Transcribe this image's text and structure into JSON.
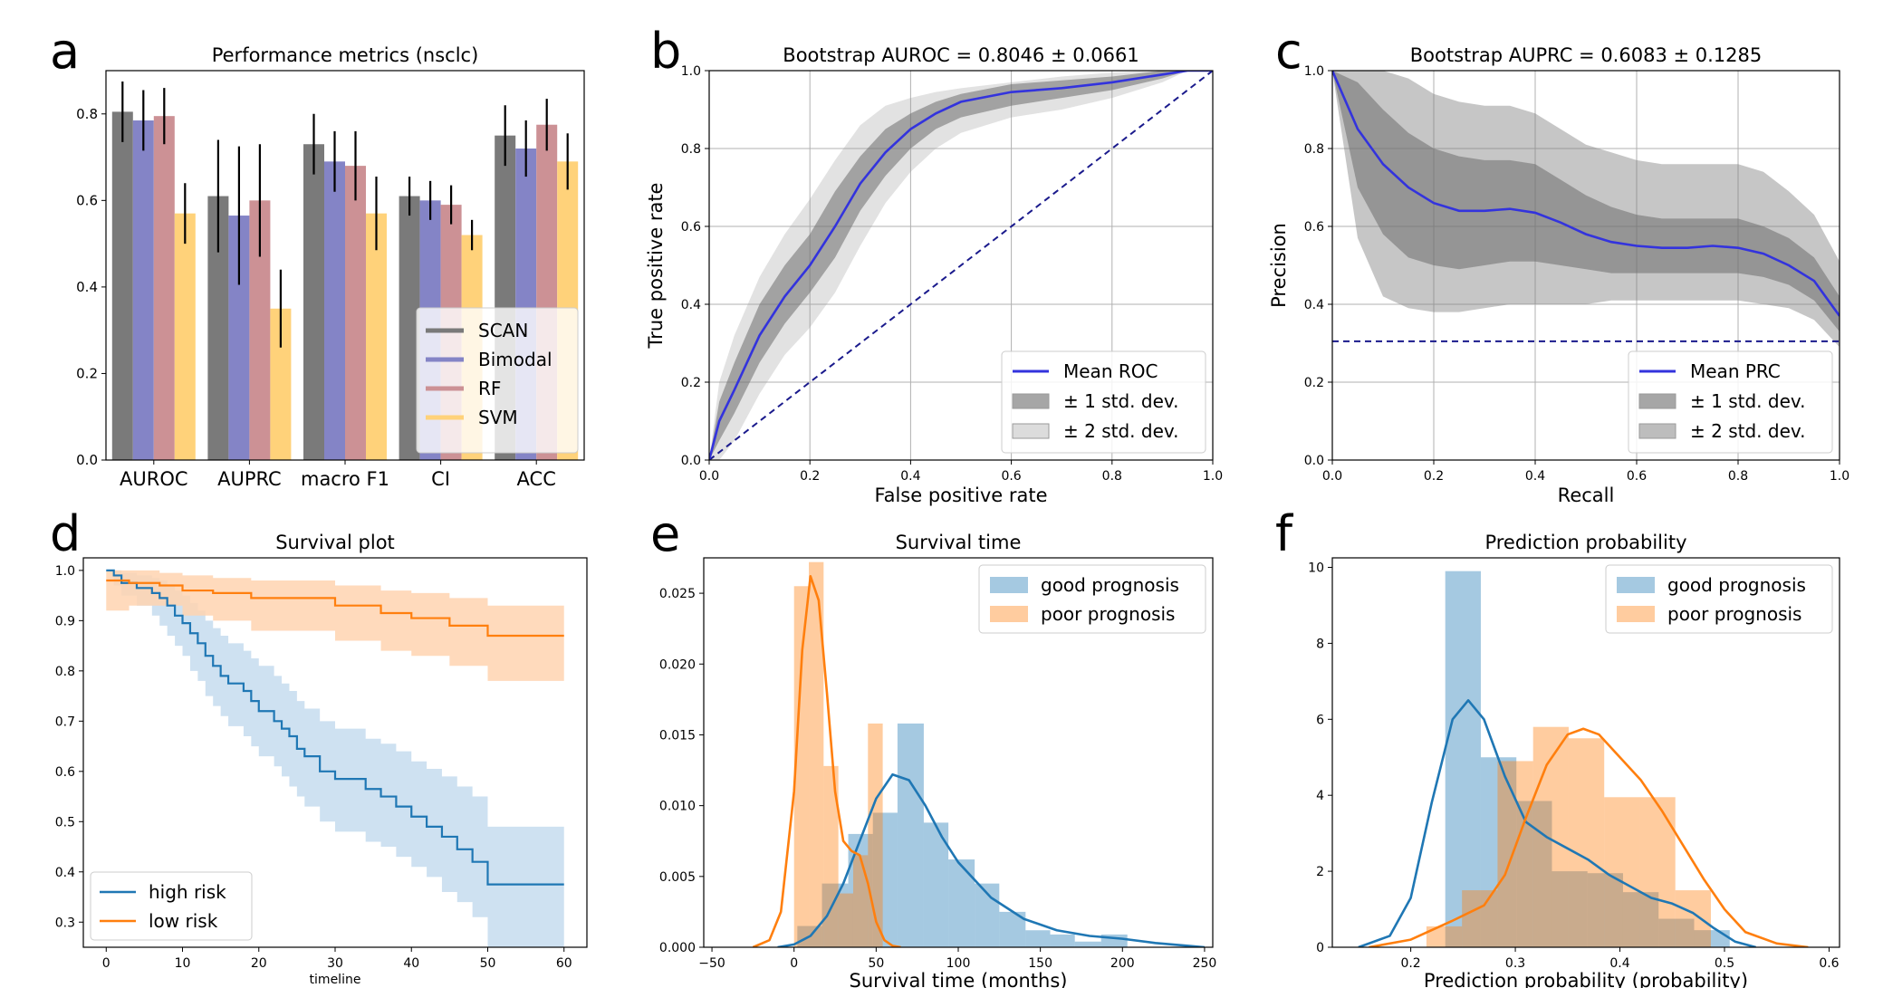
{
  "panels": {
    "a": {
      "letter": "a",
      "chart_data": {
        "type": "bar",
        "title": "Performance metrics (nsclc)",
        "xlabel": "",
        "ylabel": "",
        "categories": [
          "AUROC",
          "AUPRC",
          "macro F1",
          "CI",
          "ACC"
        ],
        "ylim": [
          0,
          0.9
        ],
        "yticks": [
          "0.0",
          "0.2",
          "0.4",
          "0.6",
          "0.8"
        ],
        "series": [
          {
            "name": "SCAN",
            "color": "#7a7a7a",
            "values": [
              0.805,
              0.61,
              0.73,
              0.61,
              0.75
            ],
            "err": [
              0.07,
              0.13,
              0.07,
              0.045,
              0.07
            ]
          },
          {
            "name": "Bimodal",
            "color": "#8484c6",
            "values": [
              0.785,
              0.565,
              0.69,
              0.6,
              0.72
            ],
            "err": [
              0.07,
              0.16,
              0.07,
              0.045,
              0.065
            ]
          },
          {
            "name": "RF",
            "color": "#cc9195",
            "values": [
              0.795,
              0.6,
              0.68,
              0.59,
              0.775
            ],
            "err": [
              0.065,
              0.13,
              0.08,
              0.045,
              0.06
            ]
          },
          {
            "name": "SVM",
            "color": "#ffd27a",
            "values": [
              0.57,
              0.35,
              0.57,
              0.52,
              0.69
            ],
            "err": [
              0.07,
              0.09,
              0.085,
              0.035,
              0.065
            ]
          }
        ],
        "legend": "lower-right"
      }
    },
    "b": {
      "letter": "b",
      "chart_data": {
        "type": "line",
        "title": "Bootstrap AUROC = 0.8046 ± 0.0661",
        "xlabel": "False positive rate",
        "ylabel": "True positive rate",
        "xlim": [
          0,
          1
        ],
        "ylim": [
          0,
          1
        ],
        "xticks": [
          "0.0",
          "0.2",
          "0.4",
          "0.6",
          "0.8",
          "1.0"
        ],
        "yticks": [
          "0.0",
          "0.2",
          "0.4",
          "0.6",
          "0.8",
          "1.0"
        ],
        "grid": true,
        "x": [
          0,
          0.02,
          0.05,
          0.1,
          0.15,
          0.2,
          0.25,
          0.3,
          0.35,
          0.4,
          0.45,
          0.5,
          0.6,
          0.7,
          0.8,
          0.9,
          0.95,
          1.0
        ],
        "mean": [
          0,
          0.1,
          0.18,
          0.32,
          0.42,
          0.5,
          0.6,
          0.71,
          0.79,
          0.85,
          0.89,
          0.92,
          0.945,
          0.955,
          0.97,
          0.99,
          1.0,
          1.0
        ],
        "std1_lower": [
          0,
          0.05,
          0.12,
          0.25,
          0.35,
          0.43,
          0.52,
          0.64,
          0.73,
          0.8,
          0.85,
          0.88,
          0.91,
          0.93,
          0.95,
          0.98,
          1.0,
          1.0
        ],
        "std1_upper": [
          0,
          0.15,
          0.25,
          0.4,
          0.5,
          0.58,
          0.69,
          0.78,
          0.85,
          0.89,
          0.92,
          0.94,
          0.965,
          0.975,
          0.985,
          1.0,
          1.0,
          1.0
        ],
        "std2_lower": [
          0,
          0.0,
          0.05,
          0.17,
          0.27,
          0.34,
          0.43,
          0.55,
          0.66,
          0.74,
          0.8,
          0.84,
          0.88,
          0.9,
          0.93,
          0.97,
          1.0,
          1.0
        ],
        "std2_upper": [
          0,
          0.2,
          0.32,
          0.47,
          0.58,
          0.67,
          0.77,
          0.86,
          0.91,
          0.93,
          0.945,
          0.955,
          0.97,
          0.985,
          0.995,
          1.0,
          1.0,
          1.0
        ],
        "diagonal": true,
        "legend": [
          {
            "label": "Mean ROC",
            "kind": "line",
            "color": "#3333dd"
          },
          {
            "label": "± 1 std. dev.",
            "kind": "box",
            "color": "#a6a6a6"
          },
          {
            "label": "± 2 std. dev.",
            "kind": "box",
            "color": "#dcdcdc"
          }
        ]
      }
    },
    "c": {
      "letter": "c",
      "chart_data": {
        "type": "line",
        "title": "Bootstrap AUPRC = 0.6083 ± 0.1285",
        "xlabel": "Recall",
        "ylabel": "Precision",
        "xlim": [
          0,
          1
        ],
        "ylim": [
          0,
          1
        ],
        "xticks": [
          "0.0",
          "0.2",
          "0.4",
          "0.6",
          "0.8",
          "1.0"
        ],
        "yticks": [
          "0.0",
          "0.2",
          "0.4",
          "0.6",
          "0.8",
          "1.0"
        ],
        "grid": true,
        "x": [
          0,
          0.05,
          0.1,
          0.15,
          0.2,
          0.25,
          0.3,
          0.35,
          0.4,
          0.45,
          0.5,
          0.55,
          0.6,
          0.65,
          0.7,
          0.75,
          0.8,
          0.85,
          0.9,
          0.95,
          1.0
        ],
        "mean": [
          1.0,
          0.85,
          0.76,
          0.7,
          0.66,
          0.64,
          0.64,
          0.645,
          0.635,
          0.61,
          0.58,
          0.56,
          0.55,
          0.545,
          0.545,
          0.55,
          0.545,
          0.53,
          0.5,
          0.46,
          0.37
        ],
        "std1_lower": [
          1.0,
          0.7,
          0.58,
          0.52,
          0.5,
          0.49,
          0.5,
          0.51,
          0.51,
          0.5,
          0.49,
          0.48,
          0.48,
          0.48,
          0.48,
          0.48,
          0.48,
          0.47,
          0.45,
          0.41,
          0.33
        ],
        "std1_upper": [
          1.0,
          0.97,
          0.9,
          0.84,
          0.8,
          0.78,
          0.77,
          0.77,
          0.76,
          0.72,
          0.68,
          0.65,
          0.63,
          0.62,
          0.62,
          0.62,
          0.62,
          0.6,
          0.57,
          0.52,
          0.42
        ],
        "std2_lower": [
          1.0,
          0.57,
          0.42,
          0.39,
          0.38,
          0.38,
          0.39,
          0.4,
          0.4,
          0.4,
          0.4,
          0.41,
          0.41,
          0.41,
          0.41,
          0.41,
          0.41,
          0.4,
          0.39,
          0.36,
          0.29
        ],
        "std2_upper": [
          1.0,
          1.0,
          1.0,
          0.98,
          0.94,
          0.92,
          0.91,
          0.91,
          0.89,
          0.85,
          0.81,
          0.79,
          0.77,
          0.76,
          0.76,
          0.76,
          0.76,
          0.74,
          0.69,
          0.63,
          0.51
        ],
        "baseline": 0.305,
        "legend": [
          {
            "label": "Mean PRC",
            "kind": "line",
            "color": "#3333dd"
          },
          {
            "label": "± 1 std. dev.",
            "kind": "box",
            "color": "#a6a6a6"
          },
          {
            "label": "± 2 std. dev.",
            "kind": "box",
            "color": "#bdbdbd"
          }
        ]
      }
    },
    "d": {
      "letter": "d",
      "chart_data": {
        "type": "line",
        "title": "Survival plot",
        "xlabel": "timeline",
        "ylabel": "",
        "xlim": [
          -3,
          63
        ],
        "ylim": [
          0.25,
          1.025
        ],
        "xticks": [
          "0",
          "10",
          "20",
          "30",
          "40",
          "50",
          "60"
        ],
        "yticks": [
          "0.3",
          "0.4",
          "0.5",
          "0.6",
          "0.7",
          "0.8",
          "0.9",
          "1.0"
        ],
        "series": [
          {
            "name": "high risk",
            "color": "#1f77b4",
            "band_color": "#c6dcef",
            "x": [
              0,
              1,
              2,
              4,
              6,
              7,
              8,
              9,
              10,
              11,
              12,
              13,
              14,
              15,
              16,
              18,
              19,
              20,
              22,
              23,
              24,
              25,
              26,
              28,
              30,
              34,
              36,
              38,
              40,
              42,
              44,
              46,
              48,
              50,
              60
            ],
            "y": [
              1.0,
              0.99,
              0.975,
              0.965,
              0.955,
              0.945,
              0.93,
              0.91,
              0.895,
              0.875,
              0.855,
              0.83,
              0.81,
              0.79,
              0.775,
              0.76,
              0.74,
              0.72,
              0.7,
              0.685,
              0.67,
              0.645,
              0.63,
              0.6,
              0.585,
              0.565,
              0.55,
              0.53,
              0.51,
              0.49,
              0.47,
              0.445,
              0.42,
              0.375,
              0.375
            ],
            "lower": [
              1.0,
              0.97,
              0.95,
              0.93,
              0.91,
              0.89,
              0.87,
              0.85,
              0.83,
              0.8,
              0.78,
              0.75,
              0.73,
              0.71,
              0.69,
              0.67,
              0.65,
              0.63,
              0.61,
              0.59,
              0.57,
              0.55,
              0.53,
              0.5,
              0.48,
              0.46,
              0.45,
              0.43,
              0.41,
              0.39,
              0.36,
              0.34,
              0.31,
              0.25,
              0.25
            ],
            "upper": [
              1.0,
              1.0,
              0.995,
              0.99,
              0.985,
              0.98,
              0.97,
              0.96,
              0.95,
              0.935,
              0.92,
              0.9,
              0.885,
              0.87,
              0.855,
              0.84,
              0.825,
              0.81,
              0.79,
              0.775,
              0.76,
              0.74,
              0.725,
              0.7,
              0.685,
              0.665,
              0.655,
              0.64,
              0.62,
              0.605,
              0.59,
              0.57,
              0.55,
              0.49,
              0.49
            ]
          },
          {
            "name": "low risk",
            "color": "#ff7f0e",
            "band_color": "#ffd4b0",
            "x": [
              0,
              3,
              7,
              10,
              14,
              19,
              30,
              36,
              40,
              45,
              50,
              60
            ],
            "y": [
              0.98,
              0.975,
              0.97,
              0.96,
              0.955,
              0.945,
              0.93,
              0.915,
              0.905,
              0.89,
              0.87,
              0.87
            ],
            "lower": [
              0.92,
              0.93,
              0.93,
              0.91,
              0.9,
              0.88,
              0.86,
              0.84,
              0.83,
              0.81,
              0.78,
              0.78
            ],
            "upper": [
              1.0,
              1.0,
              0.995,
              0.99,
              0.985,
              0.98,
              0.97,
              0.96,
              0.955,
              0.945,
              0.93,
              0.93
            ]
          }
        ],
        "legend": "lower-left"
      }
    },
    "e": {
      "letter": "e",
      "chart_data": {
        "type": "area",
        "title": "Survival time",
        "xlabel": "Survival time (months)",
        "ylabel": "",
        "xlim": [
          -55,
          255
        ],
        "ylim": [
          0,
          0.0275
        ],
        "xticks": [
          "−50",
          "0",
          "50",
          "100",
          "150",
          "200",
          "250"
        ],
        "yticks": [
          "0.000",
          "0.005",
          "0.010",
          "0.015",
          "0.020",
          "0.025"
        ],
        "series": [
          {
            "name": "good prognosis",
            "color": "#1f77b4",
            "fill": "#1f77b4",
            "hist_edges": [
              2,
              17,
              33,
              48,
              63,
              79,
              94,
              110,
              125,
              141,
              156,
              171,
              187,
              203
            ],
            "hist": [
              0.0015,
              0.0045,
              0.008,
              0.0095,
              0.0158,
              0.0088,
              0.0062,
              0.0045,
              0.0025,
              0.0012,
              0.0009,
              0.0004,
              0.0009
            ],
            "kde_x": [
              -10,
              0,
              10,
              20,
              30,
              40,
              50,
              60,
              70,
              80,
              90,
              100,
              120,
              140,
              160,
              180,
              200,
              220,
              240,
              250
            ],
            "kde_y": [
              0,
              0.0002,
              0.0008,
              0.0022,
              0.0045,
              0.0075,
              0.0105,
              0.0122,
              0.0118,
              0.01,
              0.0078,
              0.006,
              0.0035,
              0.002,
              0.0012,
              0.0008,
              0.0006,
              0.0003,
              0.0001,
              0
            ]
          },
          {
            "name": "poor prognosis",
            "color": "#ff7f0e",
            "fill": "#ff7f0e",
            "hist_edges": [
              0,
              9,
              18,
              27,
              36,
              45,
              54
            ],
            "hist": [
              0.0255,
              0.0272,
              0.0128,
              0.0038,
              0.0065,
              0.0158
            ],
            "kde_x": [
              -25,
              -15,
              -8,
              0,
              5,
              10,
              15,
              20,
              25,
              30,
              35,
              40,
              45,
              50,
              55,
              60,
              65
            ],
            "kde_y": [
              0,
              0.0005,
              0.0025,
              0.011,
              0.021,
              0.0262,
              0.0245,
              0.018,
              0.011,
              0.0075,
              0.0068,
              0.0065,
              0.0045,
              0.0018,
              0.0005,
              0.0001,
              0
            ]
          }
        ],
        "legend": "top-right"
      }
    },
    "f": {
      "letter": "f",
      "chart_data": {
        "type": "area",
        "title": "Prediction probability",
        "xlabel": "Prediction probability (probability)",
        "ylabel": "",
        "xlim": [
          0.125,
          0.61
        ],
        "ylim": [
          0,
          10.25
        ],
        "xticks": [
          "0.2",
          "0.3",
          "0.4",
          "0.5",
          "0.6"
        ],
        "yticks": [
          "0",
          "2",
          "4",
          "6",
          "8",
          "10"
        ],
        "series": [
          {
            "name": "good prognosis",
            "color": "#1f77b4",
            "fill": "#1f77b4",
            "hist_edges": [
              0.233,
              0.267,
              0.301,
              0.335,
              0.369,
              0.403,
              0.437,
              0.471,
              0.505
            ],
            "hist": [
              9.9,
              5.0,
              3.85,
              2.0,
              1.95,
              1.45,
              0.75,
              0.45
            ],
            "kde_x": [
              0.15,
              0.18,
              0.2,
              0.22,
              0.24,
              0.255,
              0.27,
              0.29,
              0.31,
              0.33,
              0.35,
              0.37,
              0.39,
              0.41,
              0.43,
              0.45,
              0.47,
              0.49,
              0.51,
              0.53
            ],
            "kde_y": [
              0,
              0.3,
              1.3,
              3.8,
              6.0,
              6.5,
              6.0,
              4.5,
              3.3,
              2.9,
              2.6,
              2.3,
              1.9,
              1.6,
              1.3,
              1.15,
              0.9,
              0.5,
              0.15,
              0
            ]
          },
          {
            "name": "poor prognosis",
            "color": "#ff7f0e",
            "fill": "#ff7f0e",
            "hist_edges": [
              0.215,
              0.249,
              0.283,
              0.317,
              0.351,
              0.385,
              0.419,
              0.453,
              0.487
            ],
            "hist": [
              0.55,
              1.5,
              4.9,
              5.8,
              5.5,
              3.95,
              3.95,
              1.5
            ],
            "kde_x": [
              0.16,
              0.2,
              0.24,
              0.27,
              0.29,
              0.31,
              0.33,
              0.35,
              0.365,
              0.38,
              0.4,
              0.42,
              0.44,
              0.46,
              0.48,
              0.5,
              0.52,
              0.55,
              0.58
            ],
            "kde_y": [
              0,
              0.2,
              0.7,
              1.1,
              1.9,
              3.4,
              4.8,
              5.6,
              5.75,
              5.6,
              5.0,
              4.4,
              3.6,
              2.7,
              1.8,
              1.0,
              0.4,
              0.1,
              0
            ]
          }
        ],
        "legend": "top-right"
      }
    }
  }
}
